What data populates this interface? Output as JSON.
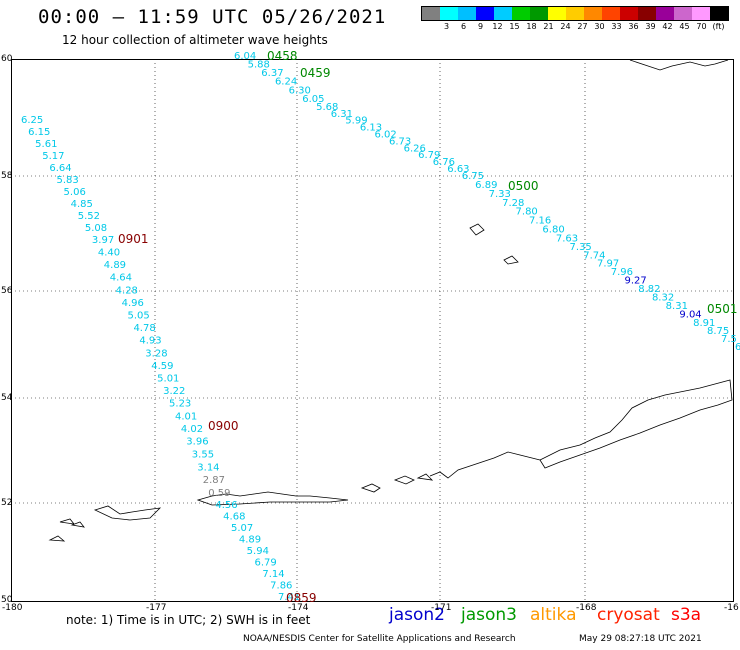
{
  "title": "00:00 – 11:59 UTC 05/26/2021",
  "subtitle": "12 hour collection of altimeter wave heights",
  "scale": {
    "colors": [
      "#808080",
      "#00ffff",
      "#00bfff",
      "#0000ff",
      "#00ccff",
      "#00cc00",
      "#009900",
      "#ffff00",
      "#ffcc00",
      "#ff8800",
      "#ff4400",
      "#cc0000",
      "#880000",
      "#990099",
      "#cc66cc",
      "#ff99ff",
      "#000000"
    ],
    "labels": [
      "",
      "3",
      "6",
      "9",
      "12",
      "15",
      "18",
      "21",
      "24",
      "27",
      "30",
      "33",
      "36",
      "39",
      "42",
      "45",
      "70",
      "(ft)"
    ]
  },
  "lat_labels": [
    "60",
    "58",
    "56",
    "54",
    "52",
    "50"
  ],
  "lon_labels": [
    "-180",
    "-177",
    "-174",
    "-171",
    "-168",
    "-16"
  ],
  "colors": {
    "cyan": "#00c8e8",
    "blue": "#0000cc",
    "gray": "#808080",
    "green": "#008800",
    "darkred": "#880000"
  },
  "tracks": [
    {
      "values": [
        "6.25",
        "6.15",
        "5.61",
        "5.17",
        "6.64",
        "5.83",
        "5.06",
        "4.85",
        "5.52",
        "5.08",
        "3.97",
        "4.40",
        "4.89",
        "4.64",
        "4.28",
        "4.96",
        "5.05",
        "4.78",
        "4.93",
        "3.28",
        "4.59",
        "5.01",
        "3.22",
        "5.23",
        "4.01",
        "4.02",
        "3.96",
        "3.55",
        "3.14",
        "2.87",
        "0.59",
        "4.56",
        "4.68",
        "5.07",
        "4.89",
        "5.94",
        "6.79",
        "7.14",
        "7.86",
        "7.41"
      ],
      "time_labels": [
        "0901",
        "0900",
        "0859"
      ]
    },
    {
      "values": [
        "6.04",
        "5.88",
        "6.37",
        "6.24",
        "6.30",
        "6.05",
        "5.68",
        "6.31",
        "5.99",
        "6.13",
        "6.02",
        "6.73",
        "6.26",
        "6.79",
        "6.76",
        "6.63",
        "6.75",
        "6.89",
        "7.33",
        "7.28",
        "7.80",
        "7.16",
        "6.80",
        "7.63",
        "7.35",
        "7.74",
        "7.97",
        "7.96",
        "9.27",
        "8.82",
        "8.32",
        "8.31",
        "9.04",
        "8.91",
        "8.75",
        "7.5",
        "6"
      ],
      "time_labels": [
        "0458",
        "0459",
        "0500",
        "0501"
      ]
    }
  ],
  "note": "note:  1) Time is in UTC;  2) SWH is in feet",
  "missions": [
    {
      "name": "jason2",
      "color": "#0000cc"
    },
    {
      "name": "jason3",
      "color": "#009900"
    },
    {
      "name": "altika",
      "color": "#ff9900"
    },
    {
      "name": "cryosat",
      "color": "#ff2200"
    },
    {
      "name": "s3a",
      "color": "#ff0000"
    }
  ],
  "footer_left": "NOAA/NESDIS Center for Satellite Applications and Research",
  "footer_right": "May 29 08:27:18 UTC 2021"
}
